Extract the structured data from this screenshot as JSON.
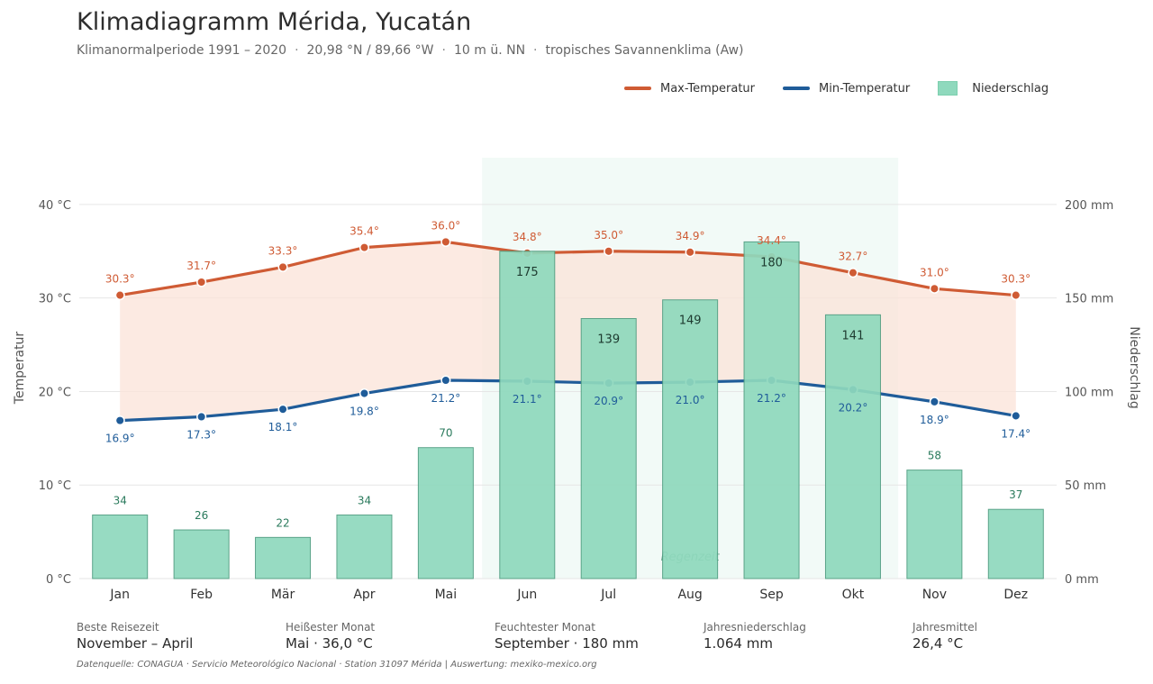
{
  "header": {
    "title": "Klimadiagramm Mérida, Yucatán",
    "subtitle_parts": [
      "Klimanormalperiode 1991 – 2020",
      "20,98 °N / 89,66 °W",
      "10 m ü. NN",
      "tropisches Savannenklima (Aw)"
    ],
    "subtitle_sep": "·"
  },
  "legend": {
    "max": "Max-Temperatur",
    "min": "Min-Temperatur",
    "precip": "Niederschlag"
  },
  "colors": {
    "max": "#cf5b34",
    "min": "#1f5c99",
    "bar_fill": "#8fd9bd",
    "bar_stroke": "#4e9c80",
    "band": "#fbe3d8",
    "rainy": "#eaf7f1",
    "bar_label": "#2a7a5c",
    "grid": "#e6e6e6"
  },
  "chart_data": {
    "type": "combo",
    "categories": [
      "Jan",
      "Feb",
      "Mär",
      "Apr",
      "Mai",
      "Jun",
      "Jul",
      "Aug",
      "Sep",
      "Okt",
      "Nov",
      "Dez"
    ],
    "series": [
      {
        "name": "Max-Temperatur",
        "kind": "line",
        "axis": "left",
        "values": [
          30.3,
          31.7,
          33.3,
          35.4,
          36.0,
          34.8,
          35.0,
          34.9,
          34.4,
          32.7,
          31.0,
          30.3
        ],
        "labels": [
          "30.3°",
          "31.7°",
          "33.3°",
          "35.4°",
          "36.0°",
          "34.8°",
          "35.0°",
          "34.9°",
          "34.4°",
          "32.7°",
          "31.0°",
          "30.3°"
        ]
      },
      {
        "name": "Min-Temperatur",
        "kind": "line",
        "axis": "left",
        "values": [
          16.9,
          17.3,
          18.1,
          19.8,
          21.2,
          21.1,
          20.9,
          21.0,
          21.2,
          20.2,
          18.9,
          17.4
        ],
        "labels": [
          "16.9°",
          "17.3°",
          "18.1°",
          "19.8°",
          "21.2°",
          "21.1°",
          "20.9°",
          "21.0°",
          "21.2°",
          "20.2°",
          "18.9°",
          "17.4°"
        ]
      },
      {
        "name": "Niederschlag",
        "kind": "bar",
        "axis": "right",
        "values": [
          34,
          26,
          22,
          34,
          70,
          175,
          139,
          149,
          180,
          141,
          58,
          37
        ]
      }
    ],
    "ylabel_left": "Temperatur",
    "ylabel_right": "Niederschlag",
    "ylim_left": [
      0,
      45
    ],
    "ylim_right": [
      0,
      225
    ],
    "left_ticks": [
      0,
      10,
      20,
      30,
      40
    ],
    "left_tick_labels": [
      "0 °C",
      "10 °C",
      "20 °C",
      "30 °C",
      "40 °C"
    ],
    "right_ticks": [
      0,
      50,
      100,
      150,
      200
    ],
    "right_tick_labels": [
      "0 mm",
      "50 mm",
      "100 mm",
      "150 mm",
      "200 mm"
    ],
    "rainy_season": {
      "label": "Regenzeit",
      "from": "Jun",
      "to": "Okt"
    },
    "grid": true,
    "legend_position": "top-right"
  },
  "stats": [
    {
      "label": "Beste Reisezeit",
      "value": "November – April"
    },
    {
      "label": "Heißester Monat",
      "value": "Mai · 36,0 °C"
    },
    {
      "label": "Feuchtester Monat",
      "value": "September · 180 mm"
    },
    {
      "label": "Jahresniederschlag",
      "value": "1.064 mm"
    },
    {
      "label": "Jahresmittel",
      "value": "26,4 °C"
    }
  ],
  "source": "Datenquelle: CONAGUA · Servicio Meteorológico Nacional · Station 31097 Mérida  |  Auswertung: mexiko-mexico.org"
}
